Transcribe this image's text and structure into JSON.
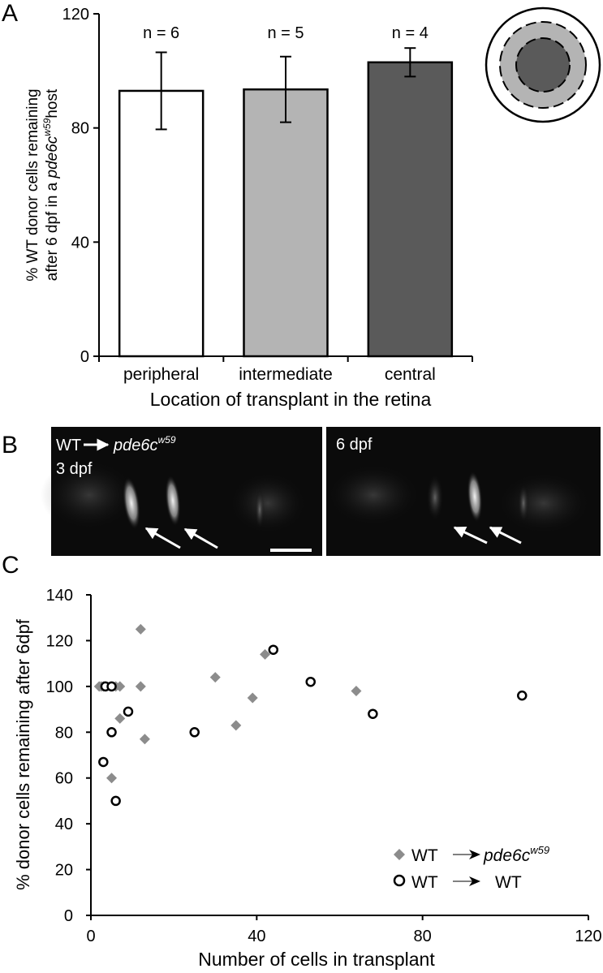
{
  "panels": {
    "A": {
      "letter": "A"
    },
    "B": {
      "letter": "B",
      "left_label": "WT",
      "left_label_italic": "pde6c",
      "left_label_sup": "w59",
      "left_time": "3 dpf",
      "right_time": "6 dpf"
    },
    "C": {
      "letter": "C"
    }
  },
  "chart_data": [
    {
      "id": "panelA",
      "type": "bar",
      "categories": [
        "peripheral",
        "intermediate",
        "central"
      ],
      "values": [
        93,
        93.5,
        103
      ],
      "errors": [
        13.5,
        11.5,
        5
      ],
      "annotations": [
        "n = 6",
        "n = 5",
        "n = 4"
      ],
      "bar_colors": [
        "#ffffff",
        "#b4b4b4",
        "#5a5a5a"
      ],
      "xlabel": "Location of transplant in the retina",
      "ylabel_line1": "% WT donor cells remaining",
      "ylabel_line2_prefix": "after 6 dpf in a ",
      "ylabel_line2_italic": "pde6c",
      "ylabel_line2_sup": "w59",
      "ylabel_line2_suffix": "host",
      "ylim": [
        0,
        120
      ],
      "yticks": [
        "0",
        "40",
        "80",
        "120"
      ],
      "grid": false
    },
    {
      "id": "panelC",
      "type": "scatter",
      "xlabel": "Number of cells in transplant",
      "ylabel": "% donor cells remaining after 6dpf",
      "xlim": [
        0,
        120
      ],
      "ylim": [
        0,
        140
      ],
      "xticks": [
        "0",
        "40",
        "80",
        "120"
      ],
      "yticks": [
        "0",
        "20",
        "40",
        "60",
        "80",
        "100",
        "120",
        "140"
      ],
      "legend_position": "bottom-right",
      "series": [
        {
          "name": "WT",
          "name_target": "pde6c",
          "name_sup": "w59",
          "marker": "diamond",
          "color": "#8c8c8c",
          "points": [
            [
              2,
              100
            ],
            [
              2.5,
              100
            ],
            [
              3,
              100
            ],
            [
              3.5,
              100
            ],
            [
              5,
              60
            ],
            [
              6,
              100
            ],
            [
              7,
              100
            ],
            [
              7,
              86
            ],
            [
              12,
              125
            ],
            [
              12,
              100
            ],
            [
              13,
              77
            ],
            [
              30,
              104
            ],
            [
              35,
              83
            ],
            [
              39,
              95
            ],
            [
              42,
              114
            ],
            [
              64,
              98
            ]
          ]
        },
        {
          "name": "WT",
          "name_target": "WT",
          "marker": "circle",
          "color": "#000000",
          "points": [
            [
              3,
              67
            ],
            [
              3.5,
              100
            ],
            [
              5,
              80
            ],
            [
              5,
              100
            ],
            [
              6,
              50
            ],
            [
              9,
              89
            ],
            [
              25,
              80
            ],
            [
              44,
              116
            ],
            [
              53,
              102
            ],
            [
              68,
              88
            ],
            [
              104,
              96
            ]
          ]
        }
      ]
    }
  ]
}
